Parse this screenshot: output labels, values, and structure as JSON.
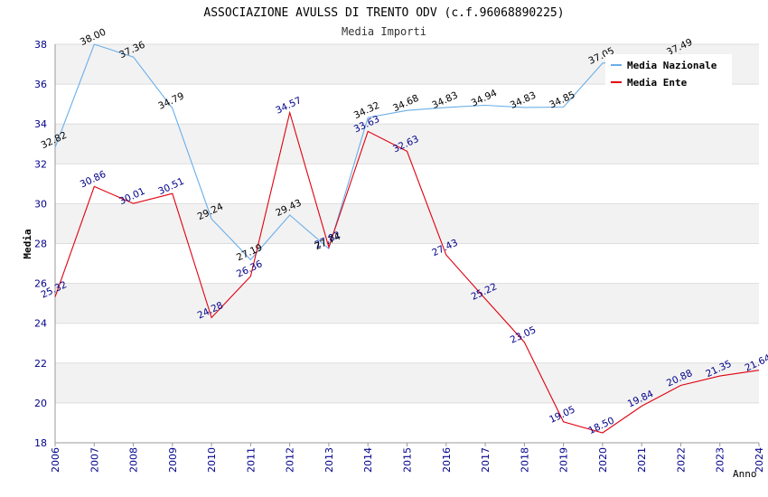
{
  "chart_data": {
    "type": "line",
    "title": "ASSOCIAZIONE AVULSS DI TRENTO ODV (c.f.96068890225)",
    "subtitle": "Media Importi",
    "xlabel": "Anno",
    "ylabel": "Media",
    "ylim": [
      18,
      38
    ],
    "yticks": [
      "18",
      "20",
      "22",
      "24",
      "26",
      "28",
      "30",
      "32",
      "34",
      "36",
      "38"
    ],
    "categories": [
      "2006",
      "2007",
      "2008",
      "2009",
      "2010",
      "2011",
      "2012",
      "2013",
      "2014",
      "2015",
      "2016",
      "2017",
      "2018",
      "2019",
      "2020",
      "2021",
      "2022",
      "2023",
      "2024"
    ],
    "series": [
      {
        "name": "Media Nazionale",
        "color": "#6aaee8",
        "values": [
          32.82,
          38.0,
          37.36,
          34.79,
          29.24,
          27.19,
          29.43,
          27.74,
          34.32,
          34.68,
          34.83,
          34.94,
          34.83,
          34.85,
          37.05,
          null,
          37.49,
          null,
          null
        ],
        "labels": [
          "32.82",
          "38.00",
          "37.36",
          "34.79",
          "29.24",
          "27.19",
          "29.43",
          "27.74",
          "34.32",
          "34.68",
          "34.83",
          "34.94",
          "34.83",
          "34.85",
          "37.05",
          "",
          "37.49",
          "",
          ""
        ]
      },
      {
        "name": "Media Ente",
        "color": "#e0000f",
        "values": [
          25.32,
          30.86,
          30.01,
          30.51,
          24.28,
          26.36,
          34.57,
          27.82,
          33.63,
          32.63,
          27.43,
          25.22,
          23.05,
          19.05,
          18.5,
          19.84,
          20.88,
          21.35,
          21.64
        ],
        "labels": [
          "25.32",
          "30.86",
          "30.01",
          "30.51",
          "24.28",
          "26.36",
          "34.57",
          "27.82",
          "33.63",
          "32.63",
          "27.43",
          "25.22",
          "23.05",
          "19.05",
          "18.50",
          "19.84",
          "20.88",
          "21.35",
          "21.64"
        ]
      }
    ],
    "legend_position": "top-right",
    "grid": true
  }
}
